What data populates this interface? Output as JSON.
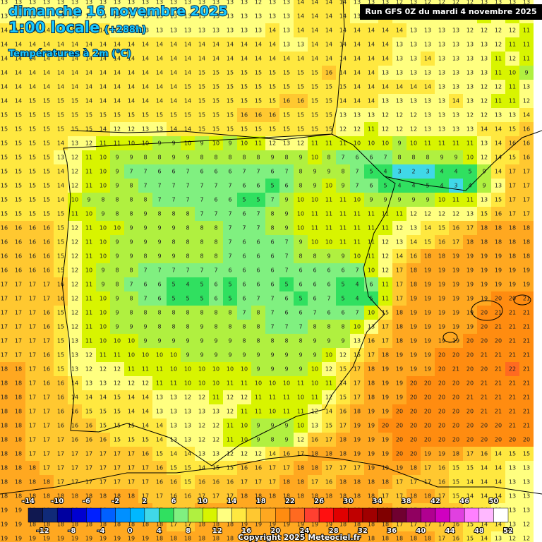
{
  "header": {
    "title": "dimanche 16 novembre 2025",
    "time": "1:00 locale",
    "lead": "(+288h)",
    "parameter": "Températures à 2m (°C)",
    "run": "Run GFS 0Z du mardi 4 novembre 2025",
    "copyright": "Copyright 2025 Meteociel.fr"
  },
  "grid": [
    [
      13,
      13,
      13,
      13,
      13,
      13,
      13,
      13,
      13,
      13,
      13,
      13,
      13,
      13,
      13,
      13,
      13,
      13,
      12,
      13,
      13,
      14,
      14,
      14,
      14,
      13,
      13,
      13,
      12,
      13,
      12,
      12,
      12,
      12,
      13,
      13,
      13,
      13
    ],
    [
      13,
      13,
      13,
      13,
      13,
      13,
      13,
      13,
      13,
      13,
      13,
      13,
      13,
      13,
      13,
      13,
      13,
      13,
      13,
      13,
      13,
      14,
      14,
      14,
      14,
      13,
      13,
      14,
      13,
      13,
      12,
      12,
      12,
      12,
      11,
      12,
      11,
      12
    ],
    [
      14,
      14,
      14,
      14,
      14,
      14,
      14,
      14,
      13,
      13,
      13,
      13,
      13,
      13,
      13,
      13,
      13,
      13,
      13,
      14,
      13,
      14,
      14,
      14,
      14,
      14,
      14,
      14,
      14,
      13,
      13,
      13,
      13,
      12,
      12,
      12,
      12,
      11
    ],
    [
      14,
      14,
      14,
      14,
      14,
      14,
      14,
      14,
      14,
      14,
      14,
      14,
      14,
      14,
      14,
      14,
      14,
      14,
      14,
      14,
      13,
      13,
      14,
      14,
      14,
      14,
      14,
      14,
      13,
      13,
      13,
      13,
      13,
      13,
      13,
      12,
      11,
      11
    ],
    [
      14,
      14,
      14,
      14,
      14,
      14,
      14,
      14,
      14,
      14,
      14,
      14,
      14,
      14,
      14,
      14,
      14,
      14,
      14,
      14,
      14,
      14,
      14,
      14,
      14,
      14,
      14,
      14,
      13,
      13,
      14,
      13,
      13,
      13,
      13,
      11,
      12,
      11
    ],
    [
      14,
      14,
      14,
      14,
      14,
      14,
      14,
      14,
      14,
      14,
      14,
      14,
      14,
      14,
      15,
      15,
      15,
      15,
      15,
      15,
      15,
      15,
      15,
      16,
      14,
      14,
      14,
      13,
      13,
      13,
      13,
      13,
      13,
      13,
      13,
      11,
      10,
      9
    ],
    [
      14,
      14,
      14,
      14,
      14,
      14,
      14,
      14,
      14,
      14,
      14,
      14,
      14,
      15,
      15,
      15,
      15,
      15,
      15,
      15,
      15,
      15,
      15,
      15,
      15,
      14,
      14,
      14,
      14,
      14,
      14,
      13,
      13,
      13,
      12,
      12,
      11,
      13
    ],
    [
      14,
      14,
      15,
      15,
      15,
      15,
      14,
      14,
      14,
      14,
      14,
      14,
      14,
      14,
      15,
      15,
      15,
      15,
      15,
      15,
      16,
      16,
      15,
      15,
      14,
      14,
      14,
      13,
      13,
      13,
      13,
      13,
      14,
      13,
      12,
      11,
      11,
      12
    ],
    [
      15,
      15,
      15,
      15,
      15,
      15,
      15,
      15,
      15,
      15,
      15,
      15,
      15,
      15,
      15,
      15,
      15,
      16,
      16,
      16,
      15,
      15,
      15,
      15,
      13,
      13,
      13,
      12,
      12,
      12,
      13,
      13,
      13,
      12,
      12,
      13,
      13,
      14
    ],
    [
      15,
      15,
      15,
      15,
      15,
      15,
      15,
      14,
      12,
      12,
      13,
      13,
      14,
      14,
      15,
      15,
      15,
      15,
      15,
      15,
      15,
      15,
      15,
      15,
      12,
      12,
      11,
      12,
      12,
      12,
      13,
      13,
      13,
      13,
      14,
      14,
      15,
      16
    ],
    [
      15,
      15,
      15,
      15,
      14,
      13,
      12,
      11,
      11,
      10,
      10,
      9,
      9,
      10,
      9,
      10,
      9,
      10,
      11,
      12,
      13,
      12,
      11,
      11,
      11,
      10,
      10,
      10,
      9,
      10,
      11,
      11,
      11,
      11,
      13,
      14,
      16,
      16
    ],
    [
      15,
      15,
      15,
      15,
      13,
      12,
      11,
      10,
      9,
      9,
      8,
      8,
      9,
      9,
      8,
      8,
      8,
      8,
      8,
      9,
      8,
      9,
      10,
      8,
      7,
      6,
      6,
      7,
      8,
      8,
      8,
      9,
      9,
      10,
      12,
      14,
      15,
      16
    ],
    [
      15,
      15,
      15,
      15,
      14,
      12,
      11,
      10,
      9,
      7,
      7,
      6,
      6,
      7,
      6,
      6,
      6,
      7,
      7,
      6,
      7,
      8,
      9,
      9,
      8,
      7,
      5,
      4,
      3,
      2,
      3,
      4,
      4,
      5,
      9,
      14,
      17,
      17
    ],
    [
      15,
      15,
      15,
      15,
      14,
      12,
      11,
      10,
      9,
      8,
      7,
      7,
      7,
      7,
      7,
      7,
      7,
      6,
      6,
      5,
      6,
      8,
      9,
      10,
      9,
      7,
      6,
      5,
      4,
      4,
      5,
      4,
      3,
      4,
      9,
      13,
      17,
      17
    ],
    [
      15,
      15,
      15,
      15,
      14,
      10,
      9,
      8,
      8,
      8,
      8,
      7,
      7,
      7,
      7,
      6,
      6,
      5,
      5,
      7,
      9,
      10,
      10,
      11,
      11,
      10,
      9,
      9,
      9,
      9,
      9,
      10,
      11,
      11,
      13,
      15,
      17,
      17
    ],
    [
      15,
      15,
      15,
      15,
      15,
      11,
      10,
      9,
      8,
      8,
      9,
      8,
      8,
      8,
      7,
      7,
      7,
      6,
      7,
      8,
      9,
      10,
      11,
      11,
      11,
      11,
      11,
      11,
      11,
      12,
      12,
      12,
      12,
      13,
      15,
      16,
      17,
      17
    ],
    [
      16,
      16,
      16,
      16,
      15,
      12,
      11,
      10,
      10,
      9,
      9,
      9,
      9,
      8,
      8,
      8,
      7,
      7,
      7,
      8,
      9,
      10,
      11,
      11,
      11,
      11,
      11,
      11,
      12,
      13,
      14,
      15,
      16,
      17,
      18,
      18,
      18,
      18
    ],
    [
      16,
      16,
      16,
      16,
      15,
      12,
      11,
      10,
      9,
      9,
      9,
      9,
      8,
      8,
      8,
      8,
      7,
      6,
      6,
      6,
      7,
      9,
      10,
      10,
      11,
      11,
      11,
      12,
      13,
      14,
      15,
      16,
      17,
      18,
      18,
      18,
      18,
      18
    ],
    [
      16,
      16,
      16,
      16,
      15,
      12,
      11,
      10,
      9,
      9,
      8,
      9,
      9,
      8,
      8,
      8,
      7,
      6,
      6,
      6,
      7,
      8,
      8,
      9,
      9,
      10,
      11,
      12,
      14,
      16,
      18,
      18,
      19,
      19,
      19,
      19,
      18,
      18
    ],
    [
      16,
      16,
      16,
      16,
      15,
      12,
      10,
      9,
      8,
      8,
      7,
      7,
      7,
      7,
      7,
      7,
      6,
      6,
      6,
      6,
      7,
      6,
      6,
      6,
      6,
      7,
      10,
      12,
      17,
      18,
      19,
      19,
      19,
      19,
      19,
      19,
      19,
      19
    ],
    [
      17,
      17,
      17,
      17,
      16,
      12,
      11,
      9,
      8,
      7,
      6,
      6,
      5,
      4,
      5,
      6,
      5,
      6,
      6,
      6,
      5,
      6,
      6,
      6,
      5,
      4,
      6,
      11,
      17,
      18,
      19,
      19,
      19,
      19,
      19,
      19,
      19,
      19
    ],
    [
      17,
      17,
      17,
      17,
      16,
      12,
      11,
      10,
      9,
      8,
      7,
      6,
      5,
      5,
      5,
      6,
      5,
      6,
      7,
      7,
      6,
      5,
      6,
      7,
      5,
      4,
      5,
      11,
      17,
      19,
      19,
      19,
      19,
      19,
      19,
      20,
      20,
      21
    ],
    [
      17,
      17,
      17,
      16,
      15,
      12,
      11,
      10,
      9,
      8,
      8,
      8,
      8,
      8,
      8,
      8,
      8,
      7,
      8,
      7,
      6,
      6,
      7,
      6,
      6,
      7,
      10,
      15,
      18,
      19,
      19,
      19,
      19,
      19,
      20,
      21,
      21,
      21
    ],
    [
      17,
      17,
      17,
      16,
      15,
      12,
      11,
      10,
      9,
      9,
      9,
      8,
      8,
      8,
      9,
      8,
      8,
      8,
      8,
      7,
      7,
      7,
      8,
      8,
      8,
      10,
      13,
      17,
      18,
      19,
      19,
      19,
      19,
      19,
      20,
      21,
      21,
      21
    ],
    [
      17,
      17,
      17,
      17,
      15,
      13,
      11,
      10,
      10,
      10,
      9,
      9,
      9,
      9,
      9,
      9,
      9,
      8,
      8,
      8,
      8,
      8,
      9,
      9,
      9,
      13,
      16,
      17,
      18,
      19,
      19,
      19,
      19,
      20,
      20,
      20,
      21,
      21
    ],
    [
      17,
      17,
      17,
      16,
      15,
      13,
      12,
      11,
      11,
      10,
      10,
      10,
      10,
      9,
      9,
      9,
      9,
      9,
      9,
      9,
      9,
      9,
      9,
      10,
      12,
      15,
      17,
      18,
      19,
      19,
      19,
      20,
      20,
      20,
      21,
      21,
      21,
      21
    ],
    [
      18,
      18,
      17,
      16,
      15,
      13,
      12,
      12,
      12,
      11,
      11,
      11,
      10,
      10,
      10,
      10,
      10,
      10,
      9,
      9,
      9,
      9,
      10,
      12,
      15,
      17,
      18,
      19,
      19,
      19,
      19,
      20,
      21,
      20,
      20,
      21,
      22,
      21
    ],
    [
      18,
      18,
      17,
      16,
      16,
      14,
      13,
      13,
      12,
      12,
      12,
      11,
      11,
      10,
      10,
      10,
      11,
      11,
      10,
      10,
      10,
      11,
      10,
      11,
      14,
      17,
      18,
      19,
      19,
      20,
      20,
      20,
      20,
      20,
      21,
      21,
      21,
      21
    ],
    [
      18,
      18,
      17,
      17,
      16,
      14,
      14,
      14,
      15,
      14,
      14,
      13,
      13,
      12,
      12,
      11,
      12,
      12,
      11,
      11,
      11,
      10,
      11,
      12,
      15,
      17,
      18,
      19,
      19,
      20,
      20,
      20,
      20,
      21,
      21,
      21,
      21,
      21
    ],
    [
      18,
      18,
      17,
      17,
      16,
      16,
      15,
      15,
      15,
      14,
      14,
      13,
      13,
      13,
      13,
      13,
      12,
      11,
      11,
      10,
      11,
      11,
      12,
      14,
      16,
      18,
      19,
      19,
      20,
      20,
      20,
      20,
      20,
      20,
      21,
      21,
      21,
      21
    ],
    [
      18,
      18,
      17,
      17,
      16,
      16,
      16,
      15,
      15,
      15,
      14,
      14,
      13,
      13,
      12,
      12,
      11,
      10,
      9,
      9,
      9,
      10,
      13,
      15,
      17,
      19,
      19,
      20,
      20,
      20,
      20,
      20,
      20,
      20,
      20,
      20,
      21,
      21
    ],
    [
      18,
      18,
      17,
      17,
      17,
      16,
      16,
      16,
      15,
      15,
      15,
      14,
      13,
      13,
      12,
      12,
      11,
      10,
      9,
      8,
      9,
      12,
      16,
      17,
      18,
      19,
      19,
      19,
      20,
      20,
      20,
      20,
      20,
      20,
      20,
      20,
      20,
      20
    ],
    [
      18,
      18,
      17,
      17,
      17,
      17,
      17,
      17,
      17,
      17,
      16,
      15,
      14,
      14,
      13,
      13,
      12,
      12,
      12,
      14,
      16,
      17,
      18,
      18,
      18,
      19,
      19,
      19,
      20,
      20,
      19,
      19,
      18,
      17,
      16,
      14,
      15,
      15
    ],
    [
      18,
      18,
      18,
      17,
      17,
      17,
      17,
      17,
      17,
      17,
      17,
      16,
      15,
      15,
      14,
      15,
      15,
      16,
      16,
      17,
      17,
      18,
      18,
      17,
      17,
      17,
      19,
      19,
      19,
      18,
      17,
      16,
      15,
      15,
      14,
      14,
      13,
      13
    ],
    [
      18,
      18,
      18,
      18,
      17,
      17,
      17,
      17,
      17,
      17,
      17,
      16,
      16,
      15,
      16,
      16,
      16,
      17,
      17,
      17,
      18,
      18,
      17,
      16,
      18,
      18,
      18,
      18,
      17,
      17,
      17,
      16,
      15,
      14,
      14,
      14,
      13,
      13
    ],
    [
      18,
      18,
      18,
      18,
      18,
      18,
      18,
      18,
      18,
      18,
      17,
      17,
      16,
      16,
      17,
      17,
      17,
      18,
      18,
      18,
      18,
      18,
      18,
      18,
      18,
      18,
      18,
      17,
      17,
      18,
      18,
      17,
      15,
      14,
      14,
      14,
      13,
      13
    ],
    [
      19,
      19,
      18,
      18,
      18,
      18,
      18,
      18,
      18,
      18,
      18,
      17,
      17,
      17,
      18,
      18,
      18,
      19,
      19,
      19,
      19,
      18,
      18,
      18,
      18,
      18,
      18,
      18,
      17,
      17,
      17,
      16,
      16,
      15,
      14,
      13,
      13,
      13
    ],
    [
      19,
      19,
      18,
      18,
      18,
      18,
      18,
      18,
      18,
      18,
      18,
      18,
      17,
      17,
      18,
      18,
      18,
      19,
      19,
      19,
      19,
      19,
      19,
      19,
      18,
      18,
      18,
      18,
      17,
      17,
      17,
      17,
      16,
      15,
      14,
      14,
      13,
      12
    ],
    [
      19,
      19,
      19,
      19,
      19,
      19,
      19,
      19,
      19,
      19,
      19,
      18,
      18,
      18,
      18,
      18,
      18,
      19,
      19,
      19,
      19,
      19,
      19,
      19,
      19,
      19,
      18,
      18,
      18,
      18,
      18,
      17,
      16,
      15,
      14,
      13,
      12,
      12
    ]
  ],
  "legend": {
    "ticks": [
      -14,
      -12,
      -10,
      -8,
      -6,
      -4,
      -2,
      0,
      2,
      4,
      6,
      8,
      10,
      12,
      14,
      16,
      18,
      20,
      22,
      24,
      26,
      28,
      30,
      32,
      34,
      36,
      38,
      40,
      42,
      44,
      46,
      48,
      50,
      52
    ],
    "colors": [
      "#101850",
      "#102a78",
      "#0000a0",
      "#0000d0",
      "#0020ff",
      "#0060ff",
      "#0090ff",
      "#00b8ff",
      "#40d8e8",
      "#30e060",
      "#80f080",
      "#b0f040",
      "#d8f400",
      "#ffff80",
      "#ffe840",
      "#ffc830",
      "#ffa820",
      "#ff8c10",
      "#ff6a20",
      "#ff4030",
      "#ff1010",
      "#e00000",
      "#c00000",
      "#a00000",
      "#800000",
      "#700030",
      "#900060",
      "#b00090",
      "#d000c0",
      "#e040e0",
      "#ff80ff",
      "#ffb8ff",
      "#ffffff"
    ]
  }
}
